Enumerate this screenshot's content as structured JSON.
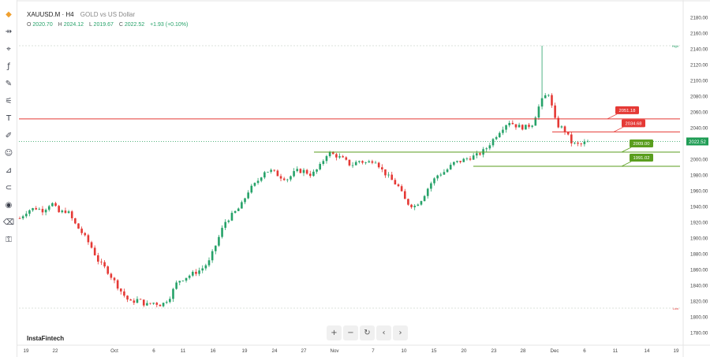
{
  "header": {
    "symbol": "XAUUSD.M · H4",
    "description": "GOLD vs US Dollar",
    "open_label": "O",
    "open": "2020.70",
    "high_label": "H",
    "high": "2024.12",
    "low_label": "L",
    "low": "2019.67",
    "close_label": "C",
    "close": "2022.52",
    "change": "+1.93 (+0.10%)"
  },
  "brand": "InstaFintech",
  "toolbar": {
    "icons": [
      "logo-icon",
      "cursor-icon",
      "crosshair-icon",
      "fx-icon",
      "draw-icon",
      "measure-icon",
      "text-icon",
      "brush-icon",
      "smile-icon",
      "ruler-icon",
      "magnet-icon",
      "eye-icon",
      "trash-icon",
      "lock-icon"
    ]
  },
  "nav": {
    "zoom_in": "+",
    "zoom_out": "−",
    "reset": "↻",
    "back": "‹",
    "forward": "›"
  },
  "colors": {
    "up": "#26a269",
    "down": "#e53935",
    "resistance": "#e53935",
    "support": "#5a9e1e",
    "price": "#1f9d55"
  },
  "chart_data": {
    "type": "candlestick",
    "symbol": "XAUUSD.M",
    "timeframe": "H4",
    "ylim": [
      1770,
      2190
    ],
    "yticks": [
      "2180.00",
      "2160.00",
      "2140.00",
      "2120.00",
      "2100.00",
      "2080.00",
      "2060.00",
      "2040.00",
      "2020.00",
      "2000.00",
      "1980.00",
      "1960.00",
      "1940.00",
      "1920.00",
      "1900.00",
      "1880.00",
      "1860.00",
      "1840.00",
      "1820.00",
      "1800.00",
      "1780.00"
    ],
    "xticks": [
      "19",
      "22",
      "Oct",
      "6",
      "11",
      "16",
      "19",
      "24",
      "27",
      "Nov",
      "7",
      "10",
      "15",
      "20",
      "23",
      "28",
      "Dec",
      "6",
      "11",
      "14",
      "19"
    ],
    "levels": [
      {
        "label": "2051.18",
        "value": 2051.18,
        "kind": "resistance"
      },
      {
        "label": "2034.68",
        "value": 2034.68,
        "kind": "resistance"
      },
      {
        "label": "2009.00",
        "value": 2009.0,
        "kind": "support"
      },
      {
        "label": "1991.02",
        "value": 1991.02,
        "kind": "support"
      }
    ],
    "current_price": {
      "label": "2022.52",
      "value": 2022.52
    },
    "hline_labels": [
      {
        "label": "High",
        "value": 2144
      },
      {
        "label": "Low",
        "value": 1811
      }
    ],
    "close_path": [
      1925,
      1935,
      1938,
      1935,
      1945,
      1932,
      1935,
      1918,
      1905,
      1890,
      1870,
      1860,
      1845,
      1830,
      1818,
      1822,
      1815,
      1818,
      1815,
      1825,
      1845,
      1850,
      1855,
      1860,
      1870,
      1895,
      1920,
      1930,
      1940,
      1960,
      1970,
      1985,
      1985,
      1978,
      1975,
      1985,
      1985,
      1980,
      1990,
      2008,
      2005,
      2000,
      1992,
      1998,
      1995,
      2000,
      1985,
      1975,
      1965,
      1945,
      1940,
      1950,
      1968,
      1980,
      1985,
      1995,
      1998,
      2002,
      2005,
      2012,
      2025,
      2038,
      2048,
      2042,
      2040,
      2045,
      2072,
      2085,
      2044,
      2038,
      2020,
      2018,
      2022.52
    ]
  }
}
